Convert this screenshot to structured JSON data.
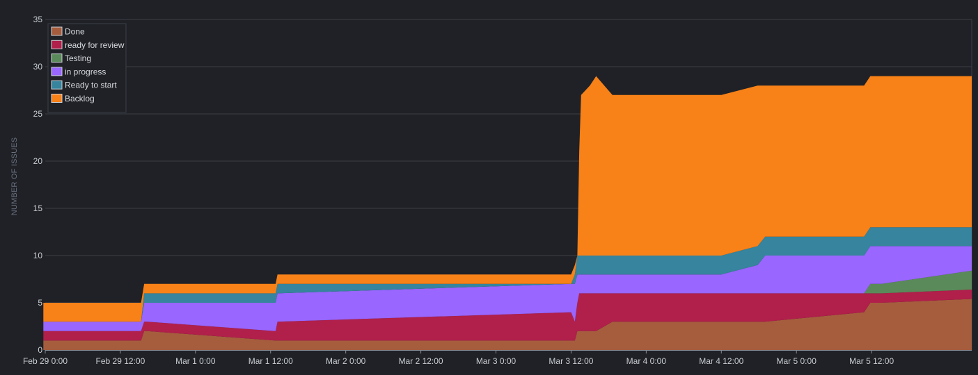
{
  "chart_data": {
    "type": "area",
    "stacked": true,
    "ylabel": "NUMBER OF ISSUES",
    "ylim": [
      0,
      35
    ],
    "yticks": [
      0,
      5,
      10,
      15,
      20,
      25,
      30,
      35
    ],
    "xlim_hours": [
      0,
      148
    ],
    "xticks": [
      {
        "label": "Feb 29 0:00",
        "hour": 0
      },
      {
        "label": "Feb 29 12:00",
        "hour": 12
      },
      {
        "label": "Mar 1 0:00",
        "hour": 24
      },
      {
        "label": "Mar 1 12:00",
        "hour": 36
      },
      {
        "label": "Mar 2 0:00",
        "hour": 48
      },
      {
        "label": "Mar 2 12:00",
        "hour": 60
      },
      {
        "label": "Mar 3 0:00",
        "hour": 72
      },
      {
        "label": "Mar 3 12:00",
        "hour": 84
      },
      {
        "label": "Mar 4 0:00",
        "hour": 96
      },
      {
        "label": "Mar 4 12:00",
        "hour": 108
      },
      {
        "label": "Mar 5 0:00",
        "hour": 120
      },
      {
        "label": "Mar 5 12:00",
        "hour": 132
      }
    ],
    "grid": true,
    "legend_position": "top-left",
    "x": [
      -0.3,
      15.3,
      15.8,
      16.3,
      36.8,
      37.1,
      84.0,
      84.6,
      85.0,
      85.3,
      85.6,
      87.0,
      88.0,
      90.6,
      96.0,
      108.0,
      113.8,
      115.0,
      130.8,
      131.8,
      133.6,
      148.0
    ],
    "series": [
      {
        "name": "Done",
        "color": "#a65d3e",
        "values": [
          1,
          1,
          2,
          2,
          1,
          1,
          1,
          1,
          2,
          2,
          2,
          2,
          2,
          3,
          3,
          3,
          3,
          3,
          4,
          5,
          5,
          5.4
        ]
      },
      {
        "name": "ready for review",
        "color": "#b11f4b",
        "values": [
          1,
          1,
          1,
          1,
          1,
          2,
          3,
          2,
          3,
          4,
          4,
          4,
          4,
          3,
          3,
          3,
          3,
          3,
          2,
          1,
          1,
          1
        ]
      },
      {
        "name": "Testing",
        "color": "#5b8a5a",
        "values": [
          0,
          0,
          0,
          0,
          0,
          0,
          0,
          0,
          0,
          0,
          0,
          0,
          0,
          0,
          0,
          0,
          0,
          0,
          0,
          1,
          1,
          2
        ]
      },
      {
        "name": "in progress",
        "color": "#9966ff",
        "values": [
          1,
          1,
          2,
          2,
          3,
          3,
          3,
          4,
          3,
          2,
          2,
          2,
          2,
          2,
          2,
          2,
          3,
          4,
          4,
          4,
          4,
          2.6
        ]
      },
      {
        "name": "Ready to start",
        "color": "#36849d",
        "values": [
          0,
          0,
          1,
          1,
          1,
          1,
          0,
          1,
          2,
          2,
          2,
          2,
          2,
          2,
          2,
          2,
          2,
          2,
          2,
          2,
          2,
          2
        ]
      },
      {
        "name": "Backlog",
        "color": "#f88118",
        "values": [
          2,
          2,
          1,
          1,
          1,
          1,
          1,
          1,
          0,
          11,
          17,
          18,
          19,
          17,
          17,
          17,
          17,
          16,
          16,
          16,
          16,
          16
        ]
      }
    ]
  }
}
